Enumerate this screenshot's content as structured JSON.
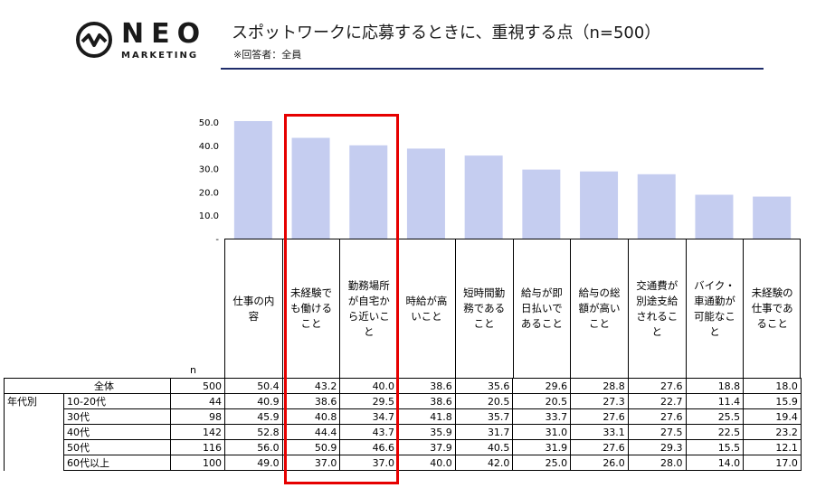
{
  "brand": {
    "word": "NEO",
    "sub": "MARKETING"
  },
  "header": {
    "title": "スポットワークに応募するときに、重視する点（n=500）",
    "subtitle": "※回答者：全員"
  },
  "chart_data": {
    "type": "bar",
    "categories": [
      "仕事の内容",
      "未経験でも働けること",
      "勤務場所が自宅から近いこと",
      "時給が高いこと",
      "短時間勤務であること",
      "給与が即日払いであること",
      "給与の総額が高いこと",
      "交通費が別途支給されること",
      "バイク・車通勤が可能なこと",
      "未経験の仕事であること"
    ],
    "values": [
      50.4,
      43.2,
      40.0,
      38.6,
      35.6,
      29.6,
      28.8,
      27.6,
      18.8,
      18.0
    ],
    "ylim": [
      0,
      55
    ],
    "yticks": [
      "-",
      "10.0",
      "20.0",
      "30.0",
      "40.0",
      "50.0"
    ],
    "bar_color": "#c5cdf0",
    "highlight_color": "#e60000"
  },
  "table": {
    "n_label": "n",
    "group_label": "年代別",
    "rows": [
      {
        "label": "全体",
        "n": "500",
        "values": [
          "50.4",
          "43.2",
          "40.0",
          "38.6",
          "35.6",
          "29.6",
          "28.8",
          "27.6",
          "18.8",
          "18.0"
        ]
      },
      {
        "label": "10-20代",
        "n": "44",
        "values": [
          "40.9",
          "38.6",
          "29.5",
          "38.6",
          "20.5",
          "20.5",
          "27.3",
          "22.7",
          "11.4",
          "15.9"
        ]
      },
      {
        "label": "30代",
        "n": "98",
        "values": [
          "45.9",
          "40.8",
          "34.7",
          "41.8",
          "35.7",
          "33.7",
          "27.6",
          "27.6",
          "25.5",
          "19.4"
        ]
      },
      {
        "label": "40代",
        "n": "142",
        "values": [
          "52.8",
          "44.4",
          "43.7",
          "35.9",
          "31.7",
          "31.0",
          "33.1",
          "27.5",
          "22.5",
          "23.2"
        ]
      },
      {
        "label": "50代",
        "n": "116",
        "values": [
          "56.0",
          "50.9",
          "46.6",
          "37.9",
          "40.5",
          "31.9",
          "27.6",
          "29.3",
          "15.5",
          "12.1"
        ]
      },
      {
        "label": "60代以上",
        "n": "100",
        "values": [
          "49.0",
          "37.0",
          "37.0",
          "40.0",
          "42.0",
          "25.0",
          "26.0",
          "28.0",
          "14.0",
          "17.0"
        ]
      }
    ]
  }
}
